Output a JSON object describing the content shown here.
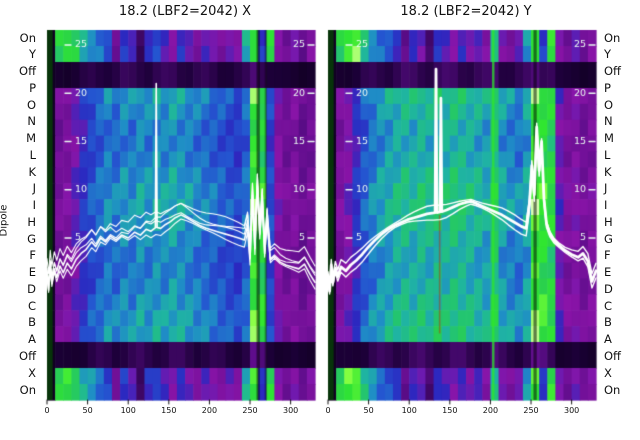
{
  "figure": {
    "background": "#ffffff"
  },
  "axis": {
    "dipole_label": "Dipole",
    "categories": [
      "On",
      "Y",
      "Off",
      "P",
      "O",
      "N",
      "M",
      "L",
      "K",
      "J",
      "I",
      "H",
      "G",
      "F",
      "E",
      "D",
      "C",
      "B",
      "A",
      "Off",
      "X",
      "On"
    ],
    "row_types": [
      "band",
      "band",
      "off",
      "main",
      "main",
      "main",
      "main",
      "main",
      "main",
      "main",
      "main",
      "main",
      "main",
      "main",
      "main",
      "main",
      "main",
      "main",
      "main",
      "off",
      "band",
      "band"
    ],
    "x_tick_labels": [
      0,
      50,
      100,
      150,
      200,
      250,
      300
    ],
    "y_tick_labels": [
      25,
      20,
      15,
      10,
      5
    ]
  },
  "chart_style": {
    "colormap": [
      [
        0,
        "#000000"
      ],
      [
        0.08,
        "#1c0038"
      ],
      [
        0.17,
        "#5c0d8a"
      ],
      [
        0.25,
        "#8a14a8"
      ],
      [
        0.33,
        "#2b28c0"
      ],
      [
        0.41,
        "#2456d0"
      ],
      [
        0.49,
        "#1f8ec6"
      ],
      [
        0.56,
        "#1fb4a2"
      ],
      [
        0.64,
        "#23c472"
      ],
      [
        0.72,
        "#2ad24a"
      ],
      [
        0.82,
        "#30e630"
      ],
      [
        0.92,
        "#86ff40"
      ],
      [
        1,
        "#f0ffd0"
      ]
    ],
    "line_color": "#ffffff",
    "off_band_base": 0.04,
    "off_band_gain": 0.12,
    "text_color": "#111111",
    "inner_tick_color": "#eafaf2"
  },
  "chart_data": [
    {
      "type": "heatmap",
      "panel": "X",
      "title": "18.2 (LBF2=2042) X",
      "x_range": [
        0,
        330
      ],
      "band_cols": [
        0.05,
        0.72,
        0.78,
        0.7,
        0.55,
        0.5,
        0.45,
        0.38,
        0.2,
        0.36,
        0.3,
        0.12,
        0.34,
        0.38,
        0.3,
        0.25,
        0.34,
        0.28,
        0.22,
        0.3,
        0.26,
        0.22,
        0.28,
        0.24,
        0.55,
        0.8,
        0.35,
        0.75,
        0.25,
        0.2,
        0.26,
        0.18,
        0.24
      ],
      "main_cols": [
        0.06,
        0.22,
        0.24,
        0.3,
        0.36,
        0.42,
        0.46,
        0.5,
        0.48,
        0.52,
        0.5,
        0.54,
        0.52,
        0.55,
        0.53,
        0.56,
        0.54,
        0.52,
        0.5,
        0.48,
        0.46,
        0.44,
        0.42,
        0.4,
        0.46,
        0.88,
        0.8,
        0.4,
        0.26,
        0.22,
        0.24,
        0.2,
        0.22
      ],
      "stripes": [
        {
          "x0": 0,
          "x1": 7,
          "color": "#063d06",
          "alpha": 0.85,
          "y0f": 0,
          "y1f": 1
        },
        {
          "x0": 258,
          "x1": 262,
          "color": "#000000",
          "alpha": 0.5,
          "y0f": 0,
          "y1f": 1
        },
        {
          "x0": 268,
          "x1": 271,
          "color": "#000000",
          "alpha": 0.35,
          "y0f": 0,
          "y1f": 1
        }
      ],
      "line": {
        "base": [
          [
            0,
            1.2
          ],
          [
            2,
            -0.4
          ],
          [
            4,
            2.0
          ],
          [
            6,
            0.3
          ],
          [
            9,
            1.8
          ],
          [
            12,
            0.9
          ],
          [
            16,
            2.1
          ],
          [
            20,
            1.4
          ],
          [
            25,
            2.4
          ],
          [
            30,
            1.8
          ],
          [
            36,
            2.8
          ],
          [
            42,
            3.4
          ],
          [
            48,
            3.8
          ],
          [
            55,
            4.6
          ],
          [
            60,
            4.1
          ],
          [
            66,
            5.0
          ],
          [
            72,
            4.6
          ],
          [
            78,
            5.2
          ],
          [
            85,
            4.8
          ],
          [
            92,
            5.3
          ],
          [
            100,
            5.0
          ],
          [
            108,
            5.6
          ],
          [
            115,
            5.3
          ],
          [
            122,
            5.9
          ],
          [
            128,
            5.7
          ],
          [
            134,
            6.1
          ],
          [
            140,
            6.0
          ],
          [
            146,
            6.4
          ],
          [
            152,
            6.7
          ],
          [
            158,
            7.1
          ],
          [
            165,
            7.4
          ],
          [
            172,
            7.1
          ],
          [
            180,
            6.7
          ],
          [
            188,
            6.3
          ],
          [
            196,
            6.0
          ],
          [
            204,
            5.8
          ],
          [
            212,
            5.6
          ],
          [
            220,
            5.4
          ],
          [
            228,
            5.2
          ],
          [
            236,
            5.0
          ],
          [
            243,
            4.8
          ],
          [
            247,
            6.3
          ],
          [
            250,
            2.9
          ],
          [
            253,
            9.4
          ],
          [
            256,
            3.9
          ],
          [
            259,
            10.4
          ],
          [
            262,
            5.4
          ],
          [
            265,
            8.9
          ],
          [
            268,
            3.4
          ],
          [
            271,
            6.9
          ],
          [
            275,
            2.7
          ],
          [
            280,
            3.1
          ],
          [
            287,
            2.5
          ],
          [
            294,
            2.2
          ],
          [
            302,
            2.0
          ],
          [
            310,
            1.8
          ],
          [
            317,
            2.3
          ],
          [
            324,
            1.2
          ],
          [
            330,
            0.4
          ]
        ],
        "spikes": [
          [
            134.5,
            21.0
          ]
        ],
        "companion_offsets": [
          0.45,
          -0.45,
          0.95,
          1.5
        ],
        "primary_width": 1.6,
        "companion_width": 1.1
      }
    },
    {
      "type": "heatmap",
      "panel": "Y",
      "title": "18.2 (LBF2=2042) Y",
      "x_range": [
        0,
        330
      ],
      "band_cols": [
        0.05,
        0.7,
        0.85,
        0.88,
        0.6,
        0.5,
        0.44,
        0.4,
        0.34,
        0.18,
        0.32,
        0.28,
        0.14,
        0.34,
        0.3,
        0.26,
        0.32,
        0.26,
        0.3,
        0.24,
        0.6,
        0.26,
        0.22,
        0.28,
        0.5,
        0.82,
        0.36,
        0.78,
        0.26,
        0.2,
        0.28,
        0.2,
        0.24
      ],
      "main_cols": [
        0.06,
        0.24,
        0.28,
        0.36,
        0.44,
        0.5,
        0.54,
        0.57,
        0.6,
        0.62,
        0.6,
        0.63,
        0.61,
        0.64,
        0.62,
        0.65,
        0.63,
        0.61,
        0.59,
        0.57,
        0.72,
        0.55,
        0.52,
        0.5,
        0.56,
        0.9,
        0.84,
        0.78,
        0.3,
        0.24,
        0.26,
        0.22,
        0.24
      ],
      "stripes": [
        {
          "x0": 0,
          "x1": 7,
          "color": "#063d06",
          "alpha": 0.85,
          "y0f": 0,
          "y1f": 1
        },
        {
          "x0": 202,
          "x1": 205,
          "color": "#2ee62e",
          "alpha": 0.75,
          "y0f": 0,
          "y1f": 1
        },
        {
          "x0": 253,
          "x1": 257,
          "color": "#000000",
          "alpha": 0.5,
          "y0f": 0,
          "y1f": 1
        },
        {
          "x0": 136.5,
          "x1": 138.5,
          "color": "#c22800",
          "alpha": 0.45,
          "y0f": 0.5,
          "y1f": 0.82
        }
      ],
      "line": {
        "base": [
          [
            0,
            1.0
          ],
          [
            2,
            -0.5
          ],
          [
            4,
            2.2
          ],
          [
            6,
            0.4
          ],
          [
            9,
            1.9
          ],
          [
            12,
            1.0
          ],
          [
            16,
            2.0
          ],
          [
            22,
            1.6
          ],
          [
            28,
            2.2
          ],
          [
            35,
            2.7
          ],
          [
            42,
            3.3
          ],
          [
            50,
            4.1
          ],
          [
            58,
            4.8
          ],
          [
            66,
            5.4
          ],
          [
            74,
            5.9
          ],
          [
            82,
            6.3
          ],
          [
            90,
            6.6
          ],
          [
            98,
            6.9
          ],
          [
            106,
            7.1
          ],
          [
            114,
            7.3
          ],
          [
            122,
            7.5
          ],
          [
            130,
            7.6
          ],
          [
            138,
            7.7
          ],
          [
            146,
            7.9
          ],
          [
            154,
            8.2
          ],
          [
            162,
            8.5
          ],
          [
            170,
            8.7
          ],
          [
            176,
            8.8
          ],
          [
            182,
            8.6
          ],
          [
            190,
            8.3
          ],
          [
            198,
            8.0
          ],
          [
            206,
            7.7
          ],
          [
            214,
            7.4
          ],
          [
            222,
            7.0
          ],
          [
            230,
            6.6
          ],
          [
            238,
            6.2
          ],
          [
            244,
            6.0
          ],
          [
            248,
            8.5
          ],
          [
            251,
            12.5
          ],
          [
            254,
            9.5
          ],
          [
            257,
            16.5
          ],
          [
            260,
            12.0
          ],
          [
            263,
            15.0
          ],
          [
            266,
            9.0
          ],
          [
            269,
            6.5
          ],
          [
            273,
            5.5
          ],
          [
            278,
            4.8
          ],
          [
            285,
            4.2
          ],
          [
            292,
            3.7
          ],
          [
            300,
            3.3
          ],
          [
            308,
            3.0
          ],
          [
            314,
            3.4
          ],
          [
            320,
            2.6
          ],
          [
            325,
            0.5
          ],
          [
            330,
            1.6
          ]
        ],
        "spikes": [
          [
            133,
            22.5
          ],
          [
            139,
            19.5
          ]
        ],
        "companion_offsets": [
          0.5,
          -0.5
        ],
        "primary_width": 2.8,
        "companion_width": 1.4
      }
    }
  ]
}
